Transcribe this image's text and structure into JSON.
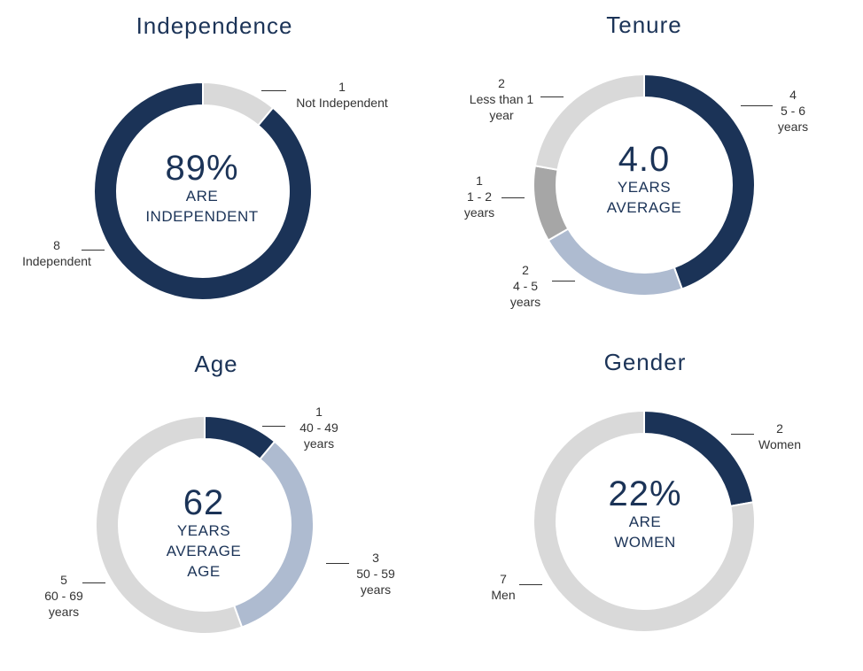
{
  "colors": {
    "navy": "#1b3357",
    "light": "#d9d9d9",
    "blue_grey": "#aebbd0",
    "mid_grey": "#a6a6a6"
  },
  "chart_data": [
    {
      "type": "pie",
      "title": "Independence",
      "center": {
        "value": "89%",
        "lines": [
          "ARE",
          "INDEPENDENT"
        ]
      },
      "slices": [
        {
          "count": "1",
          "label": "Not Independent",
          "value": 1,
          "color": "light"
        },
        {
          "count": "8",
          "label": "Independent",
          "value": 8,
          "color": "navy"
        }
      ]
    },
    {
      "type": "pie",
      "title": "Tenure",
      "center": {
        "value": "4.0",
        "lines": [
          "YEARS",
          "AVERAGE"
        ]
      },
      "slices": [
        {
          "count": "4",
          "label": "5 - 6 years",
          "value": 4,
          "color": "navy"
        },
        {
          "count": "2",
          "label": "4 - 5 years",
          "value": 2,
          "color": "blue_grey"
        },
        {
          "count": "1",
          "label": "1 - 2 years",
          "value": 1,
          "color": "mid_grey"
        },
        {
          "count": "2",
          "label": "Less than 1 year",
          "value": 2,
          "color": "light"
        }
      ]
    },
    {
      "type": "pie",
      "title": "Age",
      "center": {
        "value": "62",
        "lines": [
          "YEARS",
          "AVERAGE",
          "AGE"
        ]
      },
      "slices": [
        {
          "count": "1",
          "label": "40 - 49 years",
          "value": 1,
          "color": "navy"
        },
        {
          "count": "3",
          "label": "50 - 59 years",
          "value": 3,
          "color": "blue_grey"
        },
        {
          "count": "5",
          "label": "60 - 69 years",
          "value": 5,
          "color": "light"
        }
      ]
    },
    {
      "type": "pie",
      "title": "Gender",
      "center": {
        "value": "22%",
        "lines": [
          "ARE",
          "WOMEN"
        ]
      },
      "slices": [
        {
          "count": "2",
          "label": "Women",
          "value": 2,
          "color": "navy"
        },
        {
          "count": "7",
          "label": "Men",
          "value": 7,
          "color": "light"
        }
      ]
    }
  ]
}
